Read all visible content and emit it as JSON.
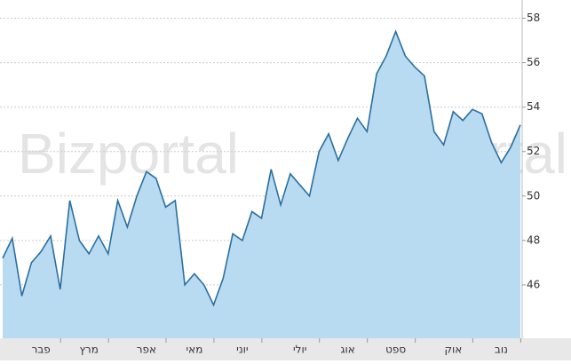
{
  "chart_data": {
    "type": "area",
    "watermark": "Bizportal",
    "categories": [
      null,
      null,
      null,
      null,
      "פבר",
      null,
      null,
      null,
      null,
      "מרץ",
      null,
      null,
      null,
      null,
      null,
      "אפר",
      null,
      null,
      null,
      null,
      "מאי",
      null,
      null,
      null,
      null,
      "יוני",
      null,
      null,
      null,
      null,
      null,
      "יולי",
      null,
      null,
      null,
      null,
      "אוג",
      null,
      null,
      null,
      null,
      "ספט",
      null,
      null,
      null,
      null,
      null,
      "אוק",
      null,
      null,
      null,
      null,
      "נוב",
      null,
      null
    ],
    "values": [
      47.2,
      48.1,
      45.5,
      47,
      47.5,
      48.2,
      45.8,
      49.8,
      48,
      47.4,
      48.2,
      47.4,
      49.8,
      48.6,
      50,
      51.1,
      50.8,
      49.5,
      49.8,
      46,
      46.5,
      46,
      45.1,
      46.3,
      48.3,
      48,
      49.3,
      49,
      51.2,
      49.6,
      51,
      50.5,
      50,
      52,
      52.8,
      51.6,
      52.6,
      53.5,
      52.9,
      55.5,
      56.3,
      57.4,
      56.3,
      55.8,
      55.4,
      52.9,
      52.3,
      53.8,
      53.4,
      53.9,
      53.7,
      52.4,
      51.5,
      52.2,
      53.2
    ],
    "color": "#2a6fa0",
    "fill": "#b9dbf2",
    "ylim": [
      43.6,
      58.7
    ],
    "yticks": [
      46,
      48,
      50,
      52,
      54,
      56,
      58
    ],
    "grid": true
  }
}
